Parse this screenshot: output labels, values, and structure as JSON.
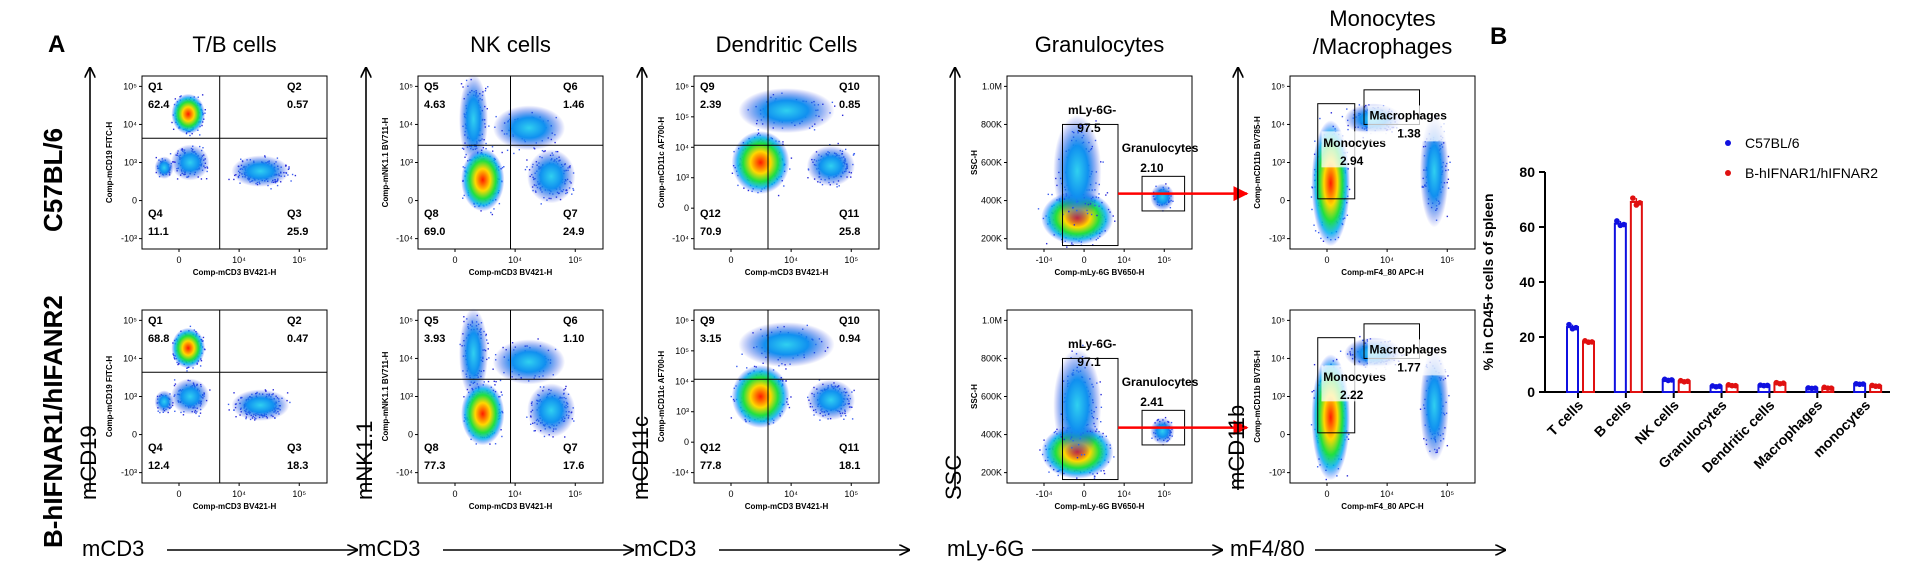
{
  "panel_labels": {
    "a": "A",
    "b": "B"
  },
  "row_labels": [
    "C57BL/6",
    "B-hIFNAR1/hIFANR2"
  ],
  "columns": [
    {
      "title": "T/B cells",
      "big_x": "mCD3",
      "big_y": "mCD19",
      "x_axis": "Comp-mCD3 BV421-H",
      "y_axis": "Comp-mCD19 FITC-H",
      "x_ticks": [
        "0",
        "10⁴",
        "10⁵"
      ],
      "y_ticks": [
        "10⁵",
        "10⁴",
        "10³",
        "0",
        "-10³"
      ],
      "gates": [
        {
          "Q1": "62.4",
          "Q2": "0.57",
          "Q3": "25.9",
          "Q4": "11.1"
        },
        {
          "Q1": "68.8",
          "Q2": "0.47",
          "Q3": "18.3",
          "Q4": "12.4"
        }
      ]
    },
    {
      "title": "NK cells",
      "big_x": "mCD3",
      "big_y": "mNK1.1",
      "x_axis": "Comp-mCD3 BV421-H",
      "y_axis": "Comp-mNK1.1 BV711-H",
      "x_ticks": [
        "0",
        "10⁴",
        "10⁵"
      ],
      "y_ticks": [
        "10⁵",
        "10⁴",
        "10³",
        "0",
        "-10⁴"
      ],
      "gates": [
        {
          "Q5": "4.63",
          "Q6": "1.46",
          "Q7": "24.9",
          "Q8": "69.0"
        },
        {
          "Q5": "3.93",
          "Q6": "1.10",
          "Q7": "17.6",
          "Q8": "77.3"
        }
      ]
    },
    {
      "title": "Dendritic Cells",
      "big_x": "mCD3",
      "big_y": "mCD11c",
      "x_axis": "Comp-mCD3 BV421-H",
      "y_axis": "Comp-mCD11c AF700-H",
      "x_ticks": [
        "0",
        "10⁴",
        "10⁵"
      ],
      "y_ticks": [
        "10⁶",
        "10⁵",
        "10⁴",
        "10³",
        "0",
        "-10⁴"
      ],
      "gates": [
        {
          "Q9": "2.39",
          "Q10": "0.85",
          "Q11": "25.8",
          "Q12": "70.9"
        },
        {
          "Q9": "3.15",
          "Q10": "0.94",
          "Q11": "18.1",
          "Q12": "77.8"
        }
      ]
    },
    {
      "title": "Granulocytes",
      "big_x": "mLy-6G",
      "big_y": "SSC",
      "x_axis": "Comp-mLy-6G BV650-H",
      "y_axis": "SSC-H",
      "x_ticks": [
        "-10⁴",
        "0",
        "10⁴",
        "10⁵"
      ],
      "y_ticks": [
        "1.0M",
        "800K",
        "600K",
        "400K",
        "200K"
      ],
      "gates": [
        {
          "neg_label": "mLy-6G-",
          "neg": "97.5",
          "pos_label": "Granulocytes",
          "pos": "2.10"
        },
        {
          "neg_label": "mLy-6G-",
          "neg": "97.1",
          "pos_label": "Granulocytes",
          "pos": "2.41"
        }
      ]
    },
    {
      "title": "Monocytes\n/Macrophages",
      "big_x": "mF4/80",
      "big_y": "mCD11b",
      "x_axis": "Comp-mF4_80 APC-H",
      "y_axis": "Comp-mCD11b BV785-H",
      "x_ticks": [
        "0",
        "10⁴",
        "10⁵"
      ],
      "y_ticks": [
        "10⁵",
        "10⁴",
        "10³",
        "0",
        "-10³"
      ],
      "gates": [
        {
          "mono_label": "Monocytes",
          "mono": "2.94",
          "mac_label": "Macrophages",
          "mac": "1.38"
        },
        {
          "mono_label": "Monocytes",
          "mono": "2.22",
          "mac_label": "Macrophages",
          "mac": "1.77"
        }
      ]
    }
  ],
  "chart_data": {
    "type": "bar",
    "title": "",
    "ylabel": "% in CD45+ cells of spleen",
    "ylim": [
      0,
      80
    ],
    "yticks": [
      0,
      20,
      40,
      60,
      80
    ],
    "categories": [
      "T cells",
      "B cells",
      "NK cells",
      "Granulocytes",
      "Dendritic cells",
      "Macrophages",
      "monocytes"
    ],
    "series": [
      {
        "name": "C57BL/6",
        "color": "#1010e0",
        "values": [
          23.6,
          61.2,
          4.4,
          2.1,
          2.4,
          1.4,
          2.9
        ],
        "points": [
          [
            24.5,
            23.0,
            23.4
          ],
          [
            62.2,
            60.6,
            60.9
          ],
          [
            4.6,
            4.2,
            4.4
          ],
          [
            2.2,
            1.9,
            2.1
          ],
          [
            2.5,
            2.3,
            2.4
          ],
          [
            1.5,
            1.3,
            1.4
          ],
          [
            3.0,
            2.8,
            2.9
          ]
        ]
      },
      {
        "name": "B-hIFNAR1/hIFNAR2",
        "color": "#e01010",
        "values": [
          18.3,
          69.1,
          3.9,
          2.4,
          3.2,
          1.5,
          2.2
        ],
        "points": [
          [
            18.6,
            18.1,
            18.2
          ],
          [
            70.5,
            68.0,
            68.8
          ],
          [
            4.1,
            3.7,
            3.9
          ],
          [
            2.6,
            2.3,
            2.3
          ],
          [
            3.4,
            3.0,
            3.2
          ],
          [
            1.7,
            1.4,
            1.4
          ],
          [
            2.4,
            2.1,
            2.1
          ]
        ]
      }
    ],
    "legend": "top-right"
  }
}
